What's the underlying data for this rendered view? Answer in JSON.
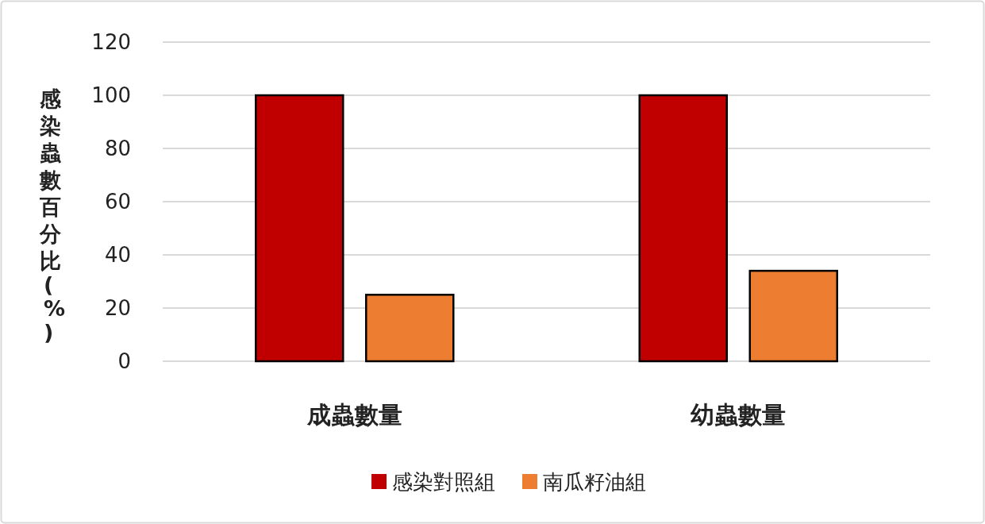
{
  "chart_data": {
    "type": "bar",
    "ylabel": "感染蟲數百分比(%)",
    "categories": [
      "成蟲數量",
      "幼蟲數量"
    ],
    "series": [
      {
        "name": "感染對照組",
        "color": "#c00000",
        "values": [
          100,
          100
        ]
      },
      {
        "name": "南瓜籽油組",
        "color": "#ed7d31",
        "values": [
          25,
          34
        ]
      }
    ],
    "ylim": [
      0,
      120
    ],
    "yticks": [
      0,
      20,
      40,
      60,
      80,
      100,
      120
    ],
    "grid": "y",
    "legend": "bottom"
  }
}
